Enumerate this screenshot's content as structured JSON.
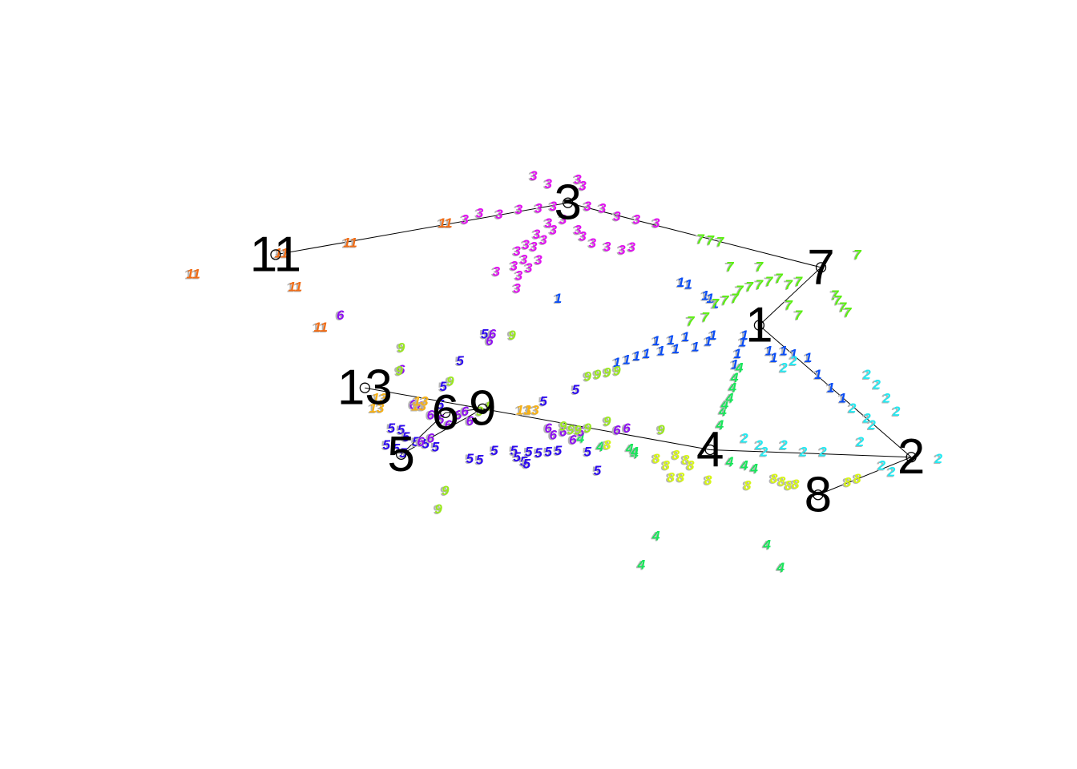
{
  "chart_data": {
    "type": "scatter",
    "title": "",
    "xlabel": "",
    "ylabel": "",
    "axes_shown": false,
    "grid": false,
    "legend": "none",
    "xlim": [
      0,
      100
    ],
    "ylim": [
      0,
      100
    ],
    "note": "Unlabelled cluster plot: small colored numeric point labels indicate cluster membership; large black numbers mark cluster centers, connected by a path.",
    "clusters": [
      {
        "label": "1",
        "color": "#0a4df5",
        "center": [
          72.5,
          58.8
        ],
        "points": [
          [
            64.5,
            65.2
          ],
          [
            65.3,
            64.9
          ],
          [
            67.0,
            63.2
          ],
          [
            67.5,
            62.8
          ],
          [
            68.0,
            62.0
          ],
          [
            52.0,
            62.8
          ],
          [
            62.0,
            56.5
          ],
          [
            63.5,
            56.6
          ],
          [
            65.0,
            57.1
          ],
          [
            67.8,
            57.3
          ],
          [
            67.3,
            56.4
          ],
          [
            66.0,
            55.6
          ],
          [
            64.0,
            55.3
          ],
          [
            62.5,
            55.0
          ],
          [
            61.0,
            54.6
          ],
          [
            60.0,
            54.2
          ],
          [
            59.0,
            53.7
          ],
          [
            58.0,
            53.3
          ],
          [
            71.0,
            57.3
          ],
          [
            70.8,
            56.3
          ],
          [
            70.3,
            54.6
          ],
          [
            70.0,
            53.0
          ],
          [
            73.5,
            55.0
          ],
          [
            74.0,
            54.0
          ],
          [
            75.0,
            55.0
          ],
          [
            76.0,
            54.5
          ],
          [
            77.5,
            54.0
          ],
          [
            78.5,
            51.5
          ],
          [
            79.8,
            49.5
          ],
          [
            81.0,
            48.0
          ]
        ]
      },
      {
        "label": "2",
        "color": "#25e8f0",
        "center": [
          88.0,
          39.2
        ],
        "points": [
          [
            83.5,
            51.5
          ],
          [
            84.5,
            50.0
          ],
          [
            85.5,
            48.0
          ],
          [
            86.5,
            46.0
          ],
          [
            82.0,
            46.5
          ],
          [
            83.5,
            45.0
          ],
          [
            84.0,
            44.0
          ],
          [
            71.0,
            42.0
          ],
          [
            72.5,
            41.0
          ],
          [
            73.0,
            40.0
          ],
          [
            75.0,
            41.0
          ],
          [
            77.0,
            40.0
          ],
          [
            79.0,
            40.0
          ],
          [
            82.8,
            41.5
          ],
          [
            85.0,
            38.0
          ],
          [
            86.0,
            37.0
          ],
          [
            90.8,
            39.0
          ],
          [
            76.0,
            53.5
          ],
          [
            75.0,
            52.5
          ]
        ]
      },
      {
        "label": "3",
        "color": "#e012ef",
        "center": [
          53.0,
          77.0
        ],
        "points": [
          [
            49.5,
            81.0
          ],
          [
            51.0,
            79.8
          ],
          [
            54.0,
            80.5
          ],
          [
            54.5,
            79.5
          ],
          [
            55.0,
            76.5
          ],
          [
            56.5,
            76.2
          ],
          [
            58.0,
            75.0
          ],
          [
            60.0,
            74.5
          ],
          [
            62.0,
            74.0
          ],
          [
            42.5,
            74.5
          ],
          [
            44.0,
            75.5
          ],
          [
            46.0,
            75.3
          ],
          [
            48.0,
            76.0
          ],
          [
            50.0,
            76.2
          ],
          [
            51.5,
            76.5
          ],
          [
            54.0,
            73.0
          ],
          [
            54.5,
            72.0
          ],
          [
            55.5,
            71.0
          ],
          [
            57.0,
            70.5
          ],
          [
            58.5,
            70.0
          ],
          [
            59.5,
            70.4
          ],
          [
            47.5,
            67.6
          ],
          [
            48.5,
            68.6
          ],
          [
            49.5,
            70.5
          ],
          [
            50.5,
            71.5
          ],
          [
            51.5,
            73.0
          ],
          [
            52.5,
            74.5
          ],
          [
            48.0,
            66.2
          ],
          [
            49.0,
            67.3
          ],
          [
            50.0,
            68.5
          ],
          [
            45.7,
            66.8
          ],
          [
            47.8,
            69.8
          ],
          [
            48.7,
            70.8
          ],
          [
            49.8,
            72.3
          ],
          [
            51.0,
            74.0
          ],
          [
            47.8,
            64.3
          ]
        ]
      },
      {
        "label": "4",
        "color": "#18e55a",
        "center": [
          67.5,
          40.3
        ],
        "points": [
          [
            68.5,
            44.0
          ],
          [
            68.8,
            46.0
          ],
          [
            69.0,
            47.0
          ],
          [
            69.5,
            48.0
          ],
          [
            69.8,
            49.5
          ],
          [
            70.0,
            51.0
          ],
          [
            70.5,
            52.5
          ],
          [
            62.0,
            27.5
          ],
          [
            60.5,
            23.2
          ],
          [
            73.3,
            26.2
          ],
          [
            74.7,
            22.8
          ],
          [
            59.3,
            40.5
          ],
          [
            59.8,
            39.7
          ],
          [
            54.3,
            42.0
          ],
          [
            56.3,
            40.8
          ],
          [
            59.8,
            40.0
          ],
          [
            69.5,
            38.5
          ],
          [
            71.0,
            38.0
          ],
          [
            72.0,
            37.5
          ]
        ]
      },
      {
        "label": "5",
        "color": "#2c09ef",
        "center": [
          36.0,
          39.6
        ],
        "points": [
          [
            44.5,
            57.5
          ],
          [
            42.0,
            53.5
          ],
          [
            40.3,
            49.7
          ],
          [
            40.0,
            47.0
          ],
          [
            50.5,
            47.5
          ],
          [
            53.8,
            49.2
          ],
          [
            35.0,
            43.5
          ],
          [
            36.0,
            43.3
          ],
          [
            36.5,
            42.2
          ],
          [
            37.5,
            41.5
          ],
          [
            38.5,
            41.2
          ],
          [
            39.5,
            40.7
          ],
          [
            34.5,
            41.0
          ],
          [
            35.5,
            40.5
          ],
          [
            36.2,
            39.8
          ],
          [
            43.0,
            39.0
          ],
          [
            44.0,
            38.8
          ],
          [
            45.5,
            40.2
          ],
          [
            47.5,
            40.2
          ],
          [
            48.5,
            38.6
          ],
          [
            49.0,
            40.0
          ],
          [
            50.0,
            39.8
          ],
          [
            51.0,
            40.0
          ],
          [
            52.0,
            40.2
          ],
          [
            55.0,
            40.0
          ],
          [
            56.0,
            37.2
          ],
          [
            48.8,
            38.2
          ],
          [
            47.8,
            39.2
          ]
        ]
      },
      {
        "label": "6",
        "color": "#8e11f0",
        "center": [
          40.5,
          45.8
        ],
        "points": [
          [
            29.8,
            60.3
          ],
          [
            45.3,
            57.5
          ],
          [
            45.0,
            56.5
          ],
          [
            36.0,
            52.2
          ],
          [
            37.2,
            47.0
          ],
          [
            38.0,
            46.8
          ],
          [
            39.0,
            45.5
          ],
          [
            40.0,
            44.8
          ],
          [
            40.8,
            44.0
          ],
          [
            41.8,
            45.5
          ],
          [
            42.5,
            46.0
          ],
          [
            43.0,
            44.6
          ],
          [
            38.0,
            41.5
          ],
          [
            39.0,
            42.0
          ],
          [
            51.0,
            43.5
          ],
          [
            51.5,
            42.5
          ],
          [
            52.5,
            43.0
          ],
          [
            53.5,
            41.8
          ],
          [
            54.3,
            43.0
          ],
          [
            58.0,
            43.2
          ],
          [
            59.0,
            43.5
          ]
        ]
      },
      {
        "label": "7",
        "color": "#5bee12",
        "center": [
          78.8,
          67.4
        ],
        "points": [
          [
            66.5,
            71.6
          ],
          [
            67.5,
            71.4
          ],
          [
            68.5,
            71.2
          ],
          [
            82.5,
            69.3
          ],
          [
            69.5,
            67.5
          ],
          [
            72.5,
            67.5
          ],
          [
            70.5,
            64.0
          ],
          [
            71.5,
            64.5
          ],
          [
            72.5,
            64.8
          ],
          [
            73.5,
            65.3
          ],
          [
            74.5,
            65.8
          ],
          [
            75.5,
            64.8
          ],
          [
            76.5,
            65.3
          ],
          [
            68.0,
            62.0
          ],
          [
            69.0,
            62.5
          ],
          [
            70.0,
            62.8
          ],
          [
            67.0,
            60.0
          ],
          [
            65.5,
            59.4
          ],
          [
            75.5,
            61.8
          ],
          [
            76.5,
            60.3
          ],
          [
            80.2,
            63.3
          ],
          [
            80.5,
            62.5
          ],
          [
            81.0,
            61.5
          ],
          [
            81.5,
            60.7
          ]
        ]
      },
      {
        "label": "8",
        "color": "#d6f516",
        "center": [
          78.5,
          33.6
        ],
        "points": [
          [
            62.0,
            39.0
          ],
          [
            63.0,
            38.0
          ],
          [
            64.0,
            39.5
          ],
          [
            65.0,
            38.8
          ],
          [
            65.5,
            38.0
          ],
          [
            63.5,
            36.2
          ],
          [
            64.5,
            36.2
          ],
          [
            67.3,
            35.8
          ],
          [
            71.3,
            35.0
          ],
          [
            74.0,
            36.0
          ],
          [
            74.8,
            35.6
          ],
          [
            75.5,
            35.0
          ],
          [
            76.2,
            35.2
          ],
          [
            81.5,
            35.5
          ],
          [
            82.5,
            36.0
          ],
          [
            57.0,
            41.0
          ]
        ]
      },
      {
        "label": "9",
        "color": "#9ae720",
        "center": [
          44.3,
          46.4
        ],
        "points": [
          [
            36.0,
            55.5
          ],
          [
            35.8,
            52.0
          ],
          [
            41.0,
            50.5
          ],
          [
            40.5,
            34.2
          ],
          [
            39.8,
            31.5
          ],
          [
            47.3,
            57.3
          ],
          [
            55.0,
            51.2
          ],
          [
            56.0,
            51.5
          ],
          [
            57.0,
            51.8
          ],
          [
            58.0,
            52.0
          ],
          [
            52.5,
            43.8
          ],
          [
            53.3,
            43.3
          ],
          [
            54.0,
            43.2
          ],
          [
            55.0,
            43.5
          ],
          [
            57.0,
            44.5
          ],
          [
            62.5,
            43.3
          ],
          [
            44.0,
            46.0
          ],
          [
            45.0,
            46.8
          ]
        ]
      },
      {
        "label": "11",
        "color": "#f06c16",
        "center": [
          23.2,
          69.3
        ],
        "points": [
          [
            14.8,
            66.4
          ],
          [
            25.2,
            64.5
          ],
          [
            27.8,
            58.5
          ],
          [
            30.8,
            71.1
          ],
          [
            40.5,
            74.0
          ],
          [
            23.8,
            69.5
          ]
        ]
      },
      {
        "label": "13",
        "color": "#f5b016",
        "center": [
          32.3,
          49.5
        ],
        "points": [
          [
            33.5,
            46.5
          ],
          [
            33.8,
            48.0
          ],
          [
            37.8,
            46.8
          ],
          [
            48.5,
            46.2
          ],
          [
            49.3,
            46.2
          ],
          [
            38.0,
            47.5
          ]
        ]
      }
    ],
    "center_path_segments": [
      [
        "11",
        "3"
      ],
      [
        "3",
        "7"
      ],
      [
        "7",
        "1"
      ],
      [
        "1",
        "2"
      ],
      [
        "2",
        "4"
      ],
      [
        "4",
        "9"
      ],
      [
        "9",
        "13"
      ],
      [
        "9",
        "6"
      ],
      [
        "6",
        "5"
      ],
      [
        "5",
        "9"
      ],
      [
        "2",
        "8"
      ]
    ]
  }
}
